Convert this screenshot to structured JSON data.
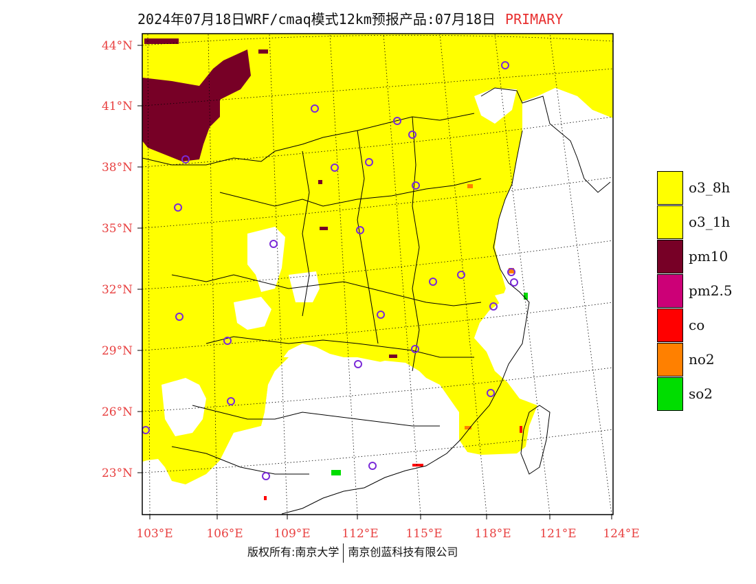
{
  "title": {
    "main": "2024年07月18日WRF/cmaq模式12km预报产品:07月18日",
    "tag": "PRIMARY"
  },
  "map": {
    "lat_labels": [
      "44°N",
      "41°N",
      "38°N",
      "35°N",
      "32°N",
      "29°N",
      "26°N",
      "23°N"
    ],
    "lon_labels": [
      "103°E",
      "106°E",
      "109°E",
      "112°E",
      "115°E",
      "118°E",
      "121°E",
      "124°E"
    ],
    "colors": {
      "o3_8h": "#ffff00",
      "pm10": "#770026",
      "co": "#ff0000",
      "no2": "#ff8000",
      "so2": "#00dd00",
      "station": "#7a2ad8",
      "boundary": "#000000"
    }
  },
  "legend": {
    "items": [
      {
        "label": "o3_8h",
        "color": "#ffff00"
      },
      {
        "label": "o3_1h",
        "color": "#ffff00"
      },
      {
        "label": "pm10",
        "color": "#770026"
      },
      {
        "label": "pm2.5",
        "color": "#cc0077"
      },
      {
        "label": "co",
        "color": "#ff0000"
      },
      {
        "label": "no2",
        "color": "#ff8000"
      },
      {
        "label": "so2",
        "color": "#00dd00"
      }
    ]
  },
  "footer": {
    "left": "版权所有:南京大学",
    "right": "南京创蓝科技有限公司"
  }
}
